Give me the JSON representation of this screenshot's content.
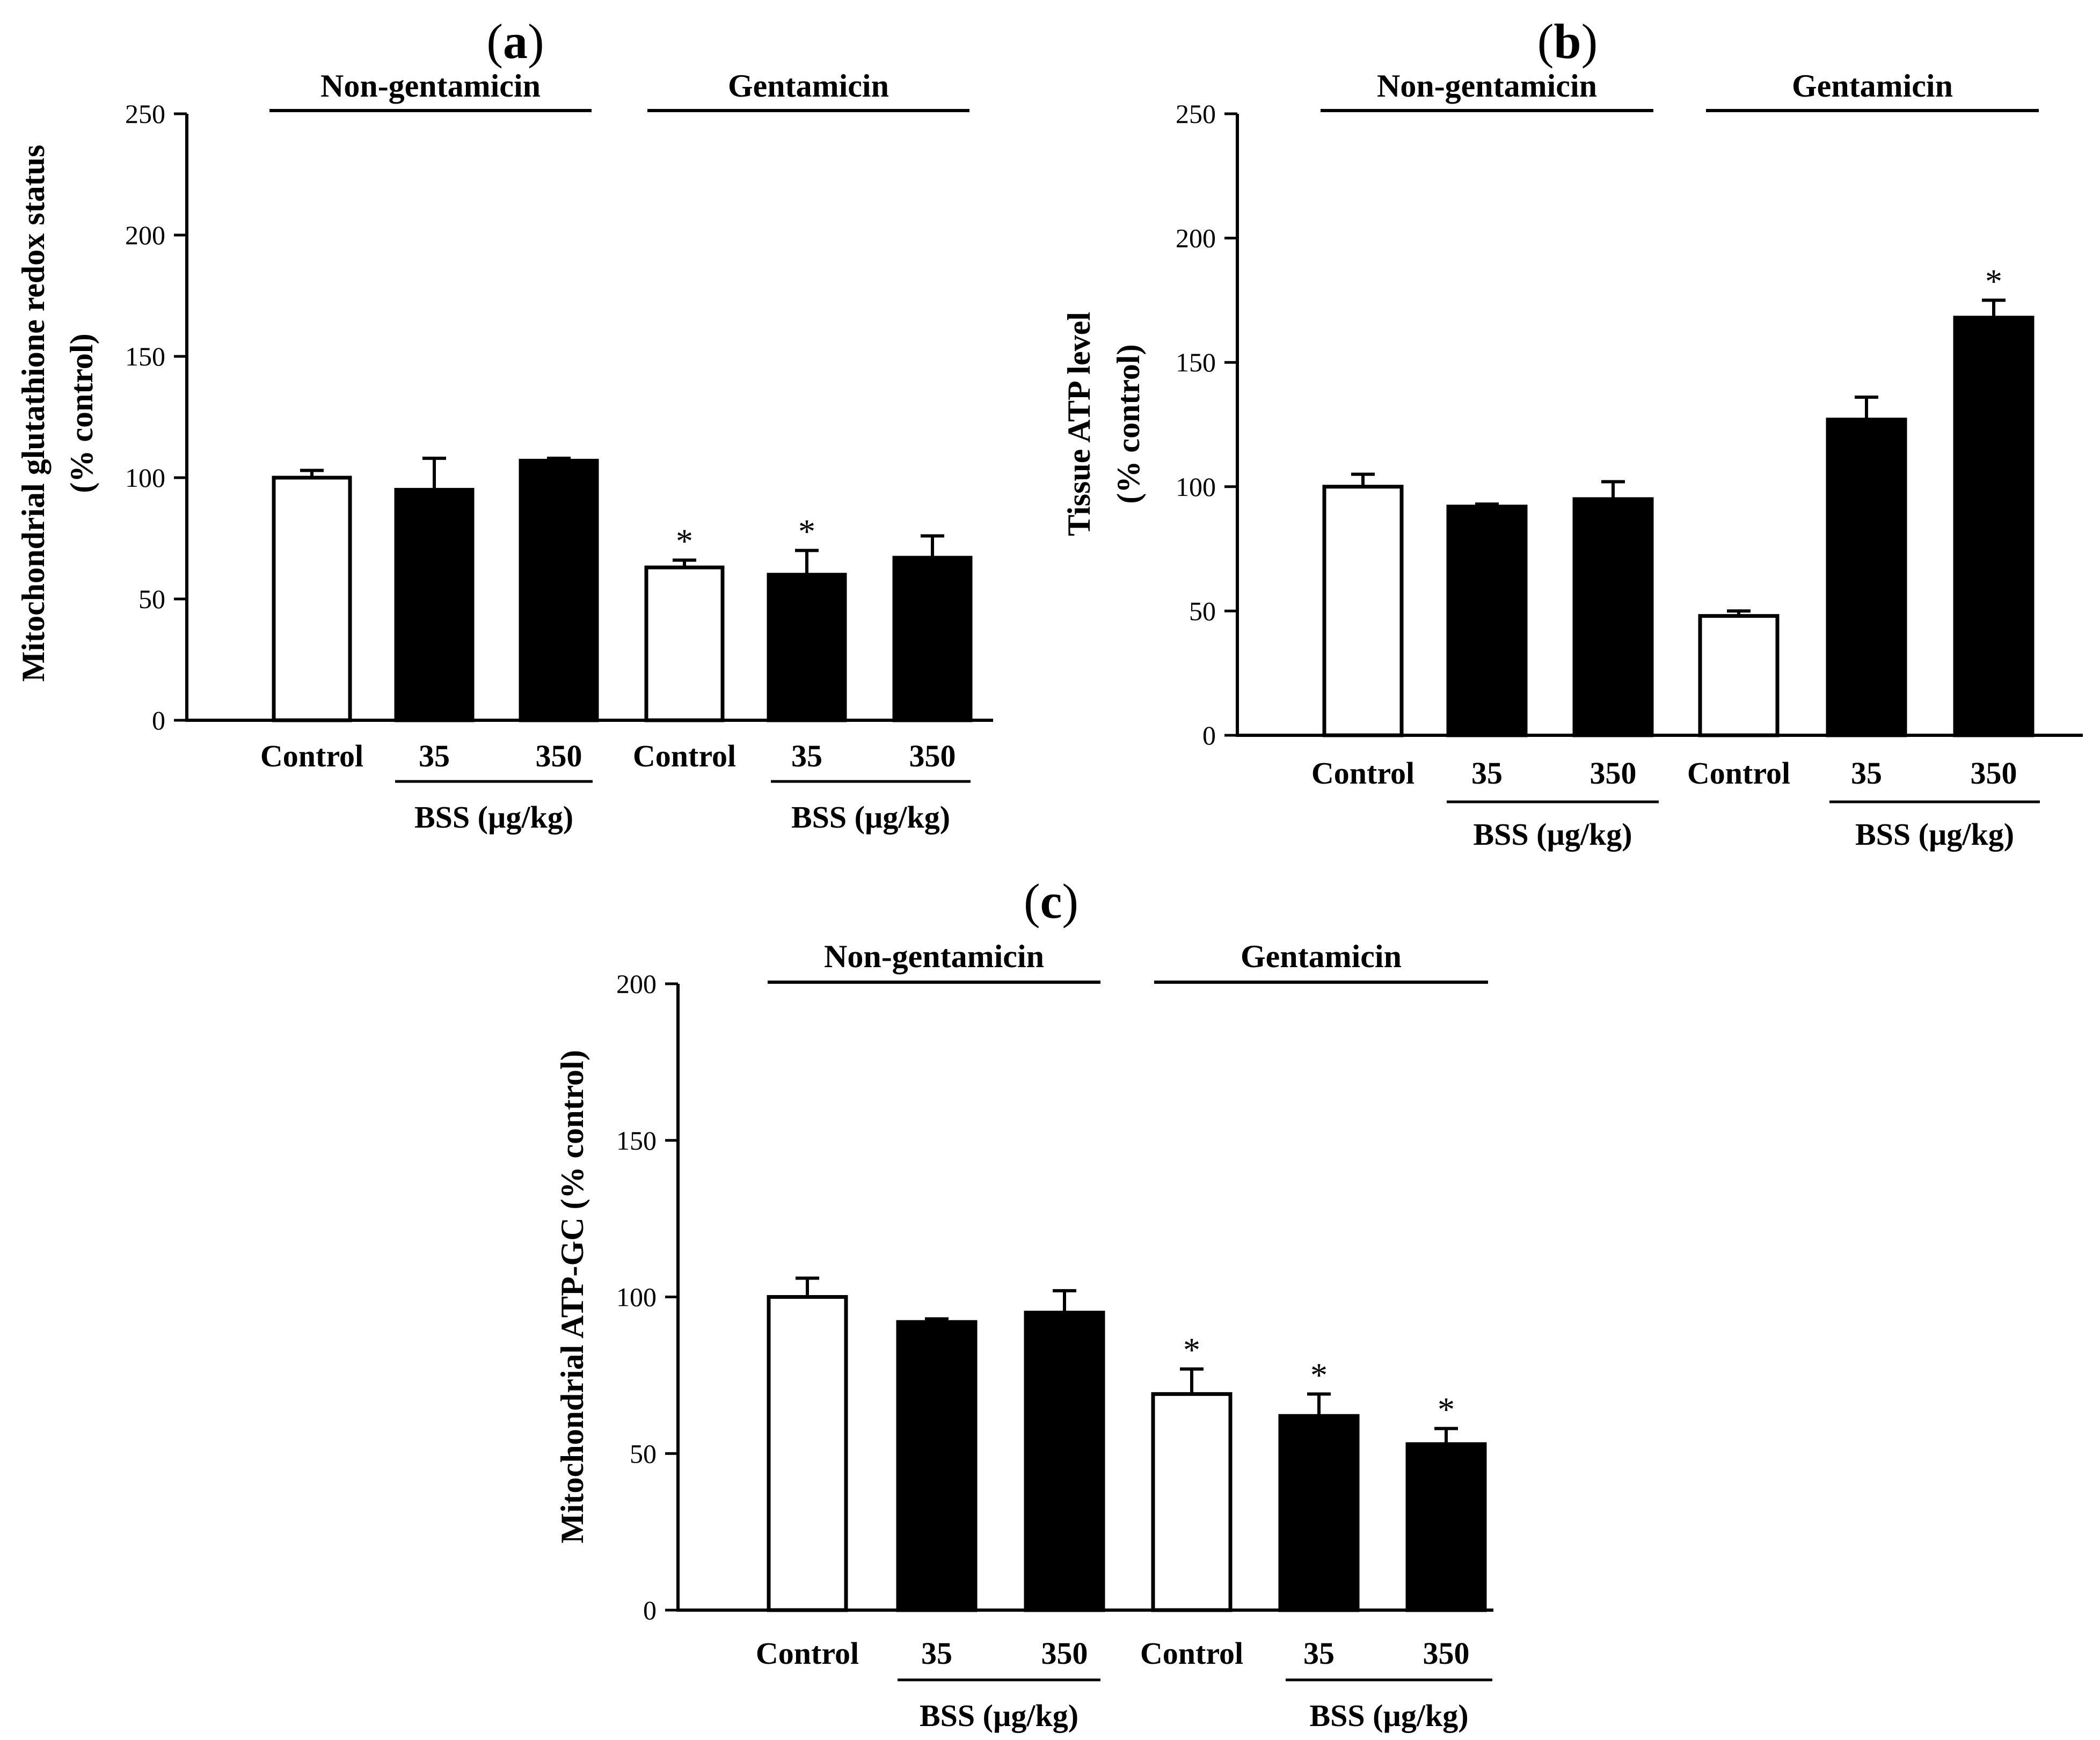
{
  "group_labels": {
    "left": "Non-gentamicin",
    "right": "Gentamicin"
  },
  "dose_group_label": "BSS (µg/kg)",
  "significance_marker": "*",
  "colors": {
    "control_fill": "#ffffff",
    "treated_fill": "#000000",
    "stroke": "#000000"
  },
  "chart_data": [
    {
      "panel": "a",
      "type": "bar",
      "ylabel_lines": [
        "Mitochondrial glutathione redox status",
        "(% control)"
      ],
      "ylim": [
        0,
        250
      ],
      "yticks": [
        0,
        50,
        100,
        150,
        200,
        250
      ],
      "categories": [
        "Control",
        "35",
        "350",
        "Control",
        "35",
        "350"
      ],
      "groups": [
        "Non-gentamicin",
        "Non-gentamicin",
        "Non-gentamicin",
        "Gentamicin",
        "Gentamicin",
        "Gentamicin"
      ],
      "values": [
        100,
        95,
        107,
        63,
        60,
        67
      ],
      "errors": [
        3,
        13,
        1,
        3,
        10,
        9
      ],
      "significant": [
        false,
        false,
        false,
        true,
        true,
        false
      ],
      "filled": [
        false,
        true,
        true,
        false,
        true,
        true
      ]
    },
    {
      "panel": "b",
      "type": "bar",
      "ylabel_lines": [
        "Tissue ATP level",
        "(% control)"
      ],
      "ylim": [
        0,
        250
      ],
      "yticks": [
        0,
        50,
        100,
        150,
        200,
        250
      ],
      "categories": [
        "Control",
        "35",
        "350",
        "Control",
        "35",
        "350"
      ],
      "groups": [
        "Non-gentamicin",
        "Non-gentamicin",
        "Non-gentamicin",
        "Gentamicin",
        "Gentamicin",
        "Gentamicin"
      ],
      "values": [
        100,
        92,
        95,
        48,
        127,
        168
      ],
      "errors": [
        5,
        1,
        7,
        2,
        9,
        7
      ],
      "significant": [
        false,
        false,
        false,
        false,
        false,
        true
      ],
      "filled": [
        false,
        true,
        true,
        false,
        true,
        true
      ]
    },
    {
      "panel": "c",
      "type": "bar",
      "ylabel_lines": [
        "Mitochondrial ATP-GC (% control)"
      ],
      "ylim": [
        0,
        200
      ],
      "yticks": [
        0,
        50,
        100,
        150,
        200
      ],
      "categories": [
        "Control",
        "35",
        "350",
        "Control",
        "35",
        "350"
      ],
      "groups": [
        "Non-gentamicin",
        "Non-gentamicin",
        "Non-gentamicin",
        "Gentamicin",
        "Gentamicin",
        "Gentamicin"
      ],
      "values": [
        100,
        92,
        95,
        69,
        62,
        53
      ],
      "errors": [
        6,
        1,
        7,
        8,
        7,
        5
      ],
      "significant": [
        false,
        false,
        false,
        true,
        true,
        true
      ],
      "filled": [
        false,
        true,
        true,
        false,
        true,
        true
      ]
    }
  ]
}
